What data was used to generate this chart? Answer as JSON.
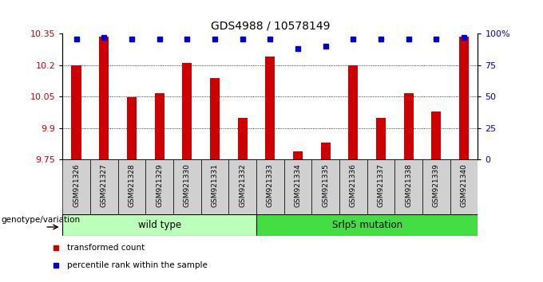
{
  "title": "GDS4988 / 10578149",
  "categories": [
    "GSM921326",
    "GSM921327",
    "GSM921328",
    "GSM921329",
    "GSM921330",
    "GSM921331",
    "GSM921332",
    "GSM921333",
    "GSM921334",
    "GSM921335",
    "GSM921336",
    "GSM921337",
    "GSM921338",
    "GSM921339",
    "GSM921340"
  ],
  "bar_values": [
    10.2,
    10.335,
    10.048,
    10.065,
    10.21,
    10.14,
    9.95,
    10.24,
    9.79,
    9.83,
    10.2,
    9.95,
    10.065,
    9.98,
    10.335
  ],
  "percentile_values": [
    96,
    97,
    96,
    96,
    96,
    96,
    96,
    96,
    88,
    90,
    96,
    96,
    96,
    96,
    97
  ],
  "bar_color": "#cc0000",
  "dot_color": "#0000cc",
  "ylim_left": [
    9.75,
    10.35
  ],
  "ylim_right": [
    0,
    100
  ],
  "yticks_left": [
    9.75,
    9.9,
    10.05,
    10.2,
    10.35
  ],
  "yticks_right": [
    0,
    25,
    50,
    75,
    100
  ],
  "grid_values": [
    9.9,
    10.05,
    10.2
  ],
  "groups": [
    {
      "label": "wild type",
      "start": 0,
      "end": 7,
      "color": "#bbffbb"
    },
    {
      "label": "Srlp5 mutation",
      "start": 7,
      "end": 15,
      "color": "#44dd44"
    }
  ],
  "group_label_prefix": "genotype/variation",
  "legend_items": [
    {
      "label": "transformed count",
      "color": "#cc0000"
    },
    {
      "label": "percentile rank within the sample",
      "color": "#0000cc"
    }
  ],
  "tick_label_color_left": "#cc0000",
  "tick_label_color_right": "#0000cc",
  "xticklabel_bg": "#d0d0d0",
  "plot_bg": "#ffffff"
}
